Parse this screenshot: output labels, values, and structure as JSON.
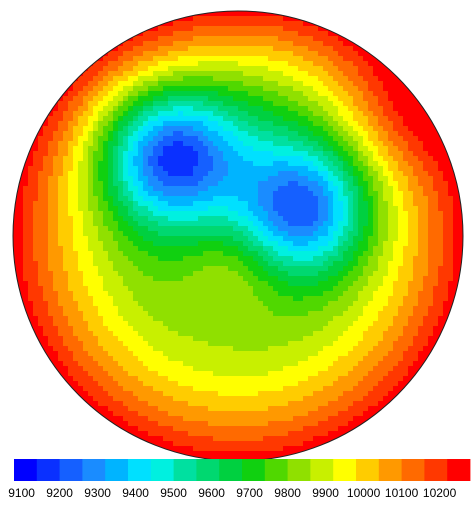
{
  "chart_data": {
    "type": "contour-map",
    "colorbar": {
      "clim": [
        9080,
        10280
      ],
      "colors": [
        "#0000ff",
        "#0a30ff",
        "#1560ff",
        "#1a8cff",
        "#00b4ff",
        "#00e0ff",
        "#00f0e0",
        "#00e0a0",
        "#00d870",
        "#00d040",
        "#10d010",
        "#50d800",
        "#90e000",
        "#c8f000",
        "#ffff00",
        "#ffcc00",
        "#ff9900",
        "#ff6a00",
        "#ff3800",
        "#ff0000"
      ],
      "ticks": [
        9100,
        9200,
        9300,
        9400,
        9500,
        9600,
        9700,
        9800,
        9900,
        10000,
        10100,
        10200
      ]
    }
  }
}
